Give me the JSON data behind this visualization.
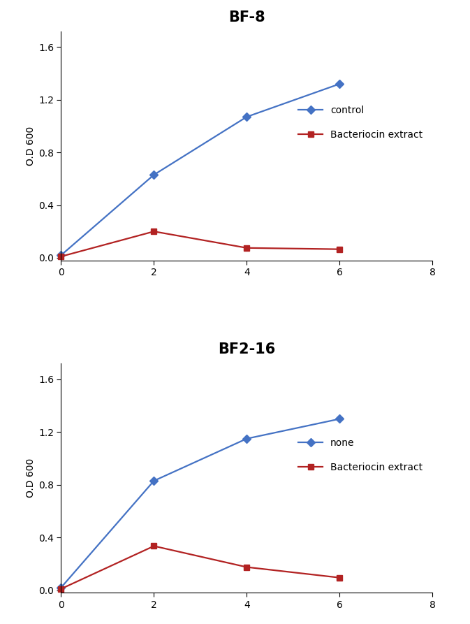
{
  "plot1": {
    "title": "BF-8",
    "ylabel": "O.D 600",
    "xlim": [
      0,
      8
    ],
    "ylim": [
      -0.02,
      1.72
    ],
    "xticks": [
      0,
      2,
      4,
      6,
      8
    ],
    "yticks": [
      0.0,
      0.4,
      0.8,
      1.2,
      1.6
    ],
    "control": {
      "x": [
        0,
        2,
        4,
        6
      ],
      "y": [
        0.02,
        0.63,
        1.07,
        1.32
      ],
      "color": "#4472C4",
      "marker": "D",
      "label": "control"
    },
    "bacteriocin": {
      "x": [
        0,
        2,
        4,
        6
      ],
      "y": [
        0.01,
        0.2,
        0.075,
        0.065
      ],
      "color": "#B22222",
      "marker": "s",
      "label": "Bacteriocin extract"
    }
  },
  "plot2": {
    "title": "BF2-16",
    "ylabel": "O.D 600",
    "xlim": [
      0,
      8
    ],
    "ylim": [
      -0.02,
      1.72
    ],
    "xticks": [
      0,
      2,
      4,
      6,
      8
    ],
    "yticks": [
      0.0,
      0.4,
      0.8,
      1.2,
      1.6
    ],
    "control": {
      "x": [
        0,
        2,
        4,
        6
      ],
      "y": [
        0.02,
        0.83,
        1.15,
        1.3
      ],
      "color": "#4472C4",
      "marker": "D",
      "label": "none"
    },
    "bacteriocin": {
      "x": [
        0,
        2,
        4,
        6
      ],
      "y": [
        0.01,
        0.335,
        0.175,
        0.095
      ],
      "color": "#B22222",
      "marker": "s",
      "label": "Bacteriocin extract"
    }
  },
  "background_color": "#ffffff",
  "title_fontsize": 15,
  "label_fontsize": 10,
  "tick_fontsize": 10,
  "legend_fontsize": 10,
  "linewidth": 1.6,
  "markersize": 6
}
